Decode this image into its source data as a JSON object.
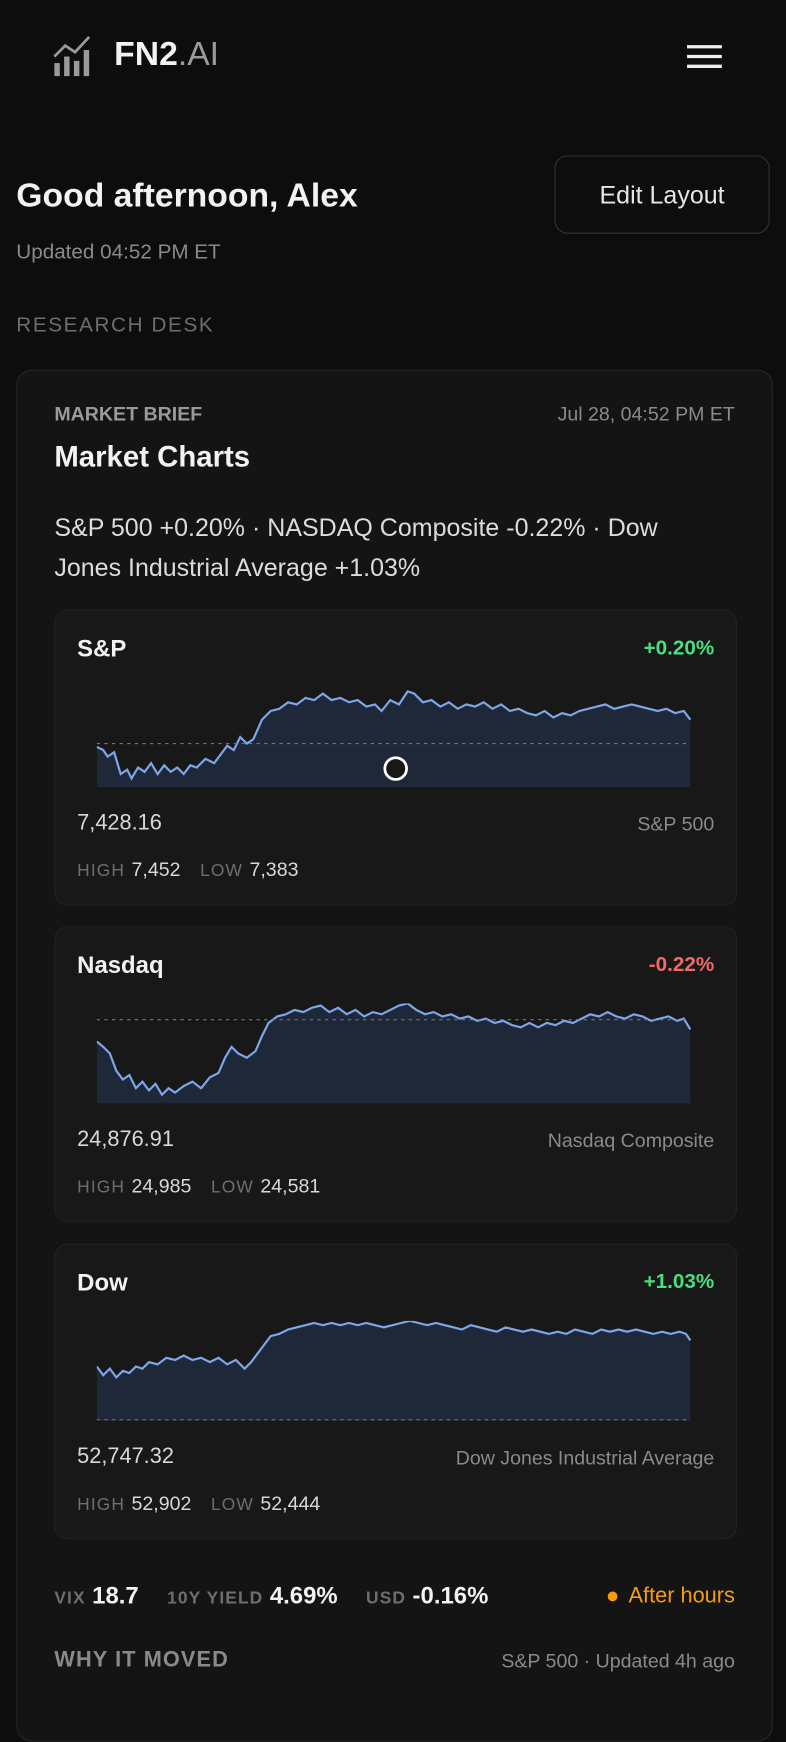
{
  "header": {
    "brand": "FN2",
    "brand_suffix": ".AI"
  },
  "greeting": {
    "title": "Good afternoon, Alex",
    "updated": "Updated 04:52 PM ET",
    "edit_button": "Edit Layout"
  },
  "section_label": "RESEARCH DESK",
  "card": {
    "kicker": "MARKET BRIEF",
    "timestamp": "Jul 28, 04:52 PM ET",
    "title": "Market Charts",
    "summary": "S&P 500 +0.20% · NASDAQ Composite -0.22% · Dow Jones Industrial Average +1.03%",
    "charts": [
      {
        "name": "S&P",
        "change": "+0.20%",
        "value": "7,428.16",
        "full_name": "S&P 500",
        "high_label": "HIGH",
        "high": "7,452",
        "low_label": "LOW",
        "low": "7,383"
      },
      {
        "name": "Nasdaq",
        "change": "-0.22%",
        "value": "24,876.91",
        "full_name": "Nasdaq Composite",
        "high_label": "HIGH",
        "high": "24,985",
        "low_label": "LOW",
        "low": "24,581"
      },
      {
        "name": "Dow",
        "change": "+1.03%",
        "value": "52,747.32",
        "full_name": "Dow Jones Industrial Average",
        "high_label": "HIGH",
        "high": "52,902",
        "low_label": "LOW",
        "low": "52,444"
      }
    ],
    "stats": [
      {
        "label": "VIX",
        "value": "18.7"
      },
      {
        "label": "10Y YIELD",
        "value": "4.69%"
      },
      {
        "label": "USD",
        "value": "-0.16%"
      }
    ],
    "status": "After hours",
    "why": {
      "title": "WHY IT MOVED",
      "meta": "S&P 500 · Updated 4h ago"
    }
  }
}
